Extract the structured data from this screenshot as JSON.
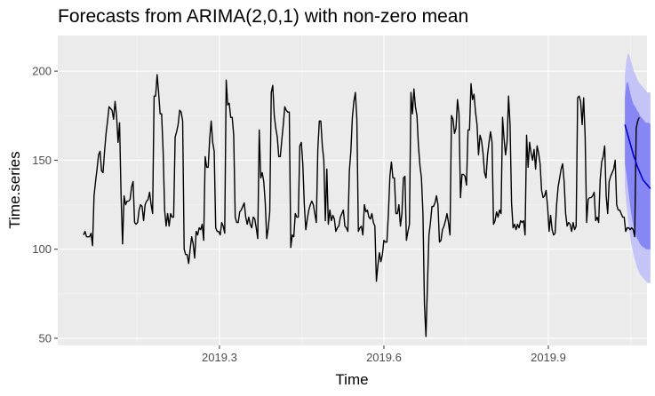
{
  "chart_data": {
    "type": "line",
    "title": "Forecasts from ARIMA(2,0,1) with non-zero mean",
    "xlabel": "Time",
    "ylabel": "Time.series",
    "xlim": [
      2019.005,
      2020.08
    ],
    "ylim": [
      46,
      220
    ],
    "x_ticks": [
      2019.3,
      2019.6,
      2019.9
    ],
    "x_tick_labels": [
      "2019.3",
      "2019.6",
      "2019.9"
    ],
    "y_ticks": [
      50,
      100,
      150,
      200
    ],
    "y_tick_labels": [
      "50",
      "100",
      "150",
      "200"
    ],
    "grid": true,
    "legend": "none",
    "colors": {
      "panel": "#ebebeb",
      "grid_major": "#ffffff",
      "grid_minor": "#f5f5f5",
      "history_line": "#000000",
      "forecast_line": "#0000cc",
      "band_80": "#8686f5",
      "band_95": "#c4c4f7"
    },
    "series": [
      {
        "name": "",
        "role": "history",
        "x_start": 2019.052,
        "x_step": 0.00274,
        "values": [
          108,
          110,
          107,
          107,
          107,
          109,
          102,
          130,
          138,
          145,
          153,
          155,
          144,
          143,
          155,
          165,
          172,
          180,
          179,
          178,
          173,
          183,
          175,
          160,
          171,
          130,
          103,
          130,
          125,
          127,
          127,
          128,
          135,
          138,
          115,
          114,
          115,
          122,
          125,
          124,
          116,
          125,
          127,
          128,
          132,
          125,
          120,
          186,
          186,
          198,
          188,
          176,
          176,
          155,
          122,
          113,
          120,
          113,
          120,
          118,
          118,
          163,
          166,
          170,
          178,
          177,
          172,
          100,
          97,
          97,
          92,
          100,
          107,
          103,
          95,
          110,
          108,
          112,
          111,
          114,
          105,
          152,
          146,
          146,
          162,
          172,
          160,
          155,
          112,
          110,
          110,
          108,
          115,
          113,
          109,
          195,
          181,
          182,
          174,
          174,
          164,
          118,
          115,
          115,
          121,
          122,
          124,
          126,
          118,
          114,
          118,
          114,
          112,
          118,
          117,
          112,
          106,
          167,
          140,
          143,
          138,
          126,
          106,
          112,
          121,
          188,
          192,
          175,
          168,
          163,
          152,
          152,
          161,
          170,
          180,
          178,
          177,
          177,
          101,
          108,
          107,
          120,
          118,
          118,
          158,
          160,
          148,
          125,
          111,
          117,
          122,
          125,
          127,
          125,
          120,
          115,
          156,
          172,
          172,
          158,
          150,
          116,
          145,
          114,
          122,
          116,
          119,
          117,
          110,
          112,
          113,
          118,
          120,
          122,
          113,
          112,
          110,
          144,
          155,
          174,
          183,
          188,
          173,
          110,
          112,
          113,
          108,
          125,
          121,
          122,
          118,
          117,
          120,
          115,
          113,
          82,
          91,
          98,
          93,
          97,
          105,
          104,
          104,
          120,
          141,
          149,
          140,
          140,
          120,
          120,
          125,
          113,
          120,
          140,
          141,
          105,
          110,
          114,
          188,
          176,
          190,
          180,
          175,
          158,
          147,
          140,
          120,
          69,
          51,
          80,
          108,
          115,
          124,
          124,
          126,
          130,
          125,
          104,
          105,
          111,
          113,
          116,
          120,
          115,
          108,
          175,
          173,
          165,
          168,
          184,
          176,
          129,
          142,
          142,
          141,
          136,
          167,
          167,
          193,
          184,
          187,
          177,
          170,
          153,
          164,
          161,
          154,
          143,
          140,
          153,
          160,
          166,
          160,
          114,
          116,
          121,
          118,
          122,
          120,
          174,
          162,
          153,
          160,
          186,
          170,
          126,
          112,
          114,
          111,
          114,
          112,
          116,
          115,
          116,
          108,
          164,
          146,
          160,
          154,
          150,
          156,
          145,
          158,
          154,
          148,
          133,
          129,
          130,
          133,
          124,
          110,
          119,
          111,
          108,
          109,
          125,
          135,
          140,
          145,
          148,
          138,
          120,
          113,
          115,
          114,
          110,
          115,
          111,
          113,
          185,
          186,
          183,
          170,
          185,
          163,
          115,
          128,
          129,
          129,
          130,
          132,
          116,
          118,
          115,
          139,
          149,
          152,
          158,
          130,
          120,
          138,
          141,
          143,
          145,
          150,
          125,
          122,
          122,
          120,
          118,
          118,
          110,
          112,
          112,
          111,
          112,
          111,
          107,
          168,
          172,
          174
        ]
      },
      {
        "name": "",
        "role": "forecast",
        "x_start": 2020.0397,
        "x_step": 0.00274,
        "values": [
          170,
          167,
          164,
          161,
          158,
          155,
          152,
          150,
          147,
          145,
          143,
          141,
          139,
          138,
          137,
          136,
          135,
          134
        ]
      }
    ],
    "prediction_intervals": {
      "x_start": 2020.0397,
      "x_step": 0.00274,
      "lo80": [
        148,
        142,
        135,
        128,
        121,
        116,
        112,
        109,
        106,
        105,
        103,
        102,
        101,
        101,
        100,
        100,
        100,
        100
      ],
      "hi80": [
        185,
        193,
        194,
        190,
        186,
        183,
        181,
        180,
        178,
        177,
        175,
        174,
        173,
        172,
        171,
        171,
        171,
        170
      ],
      "lo95": [
        135,
        125,
        117,
        110,
        104,
        100,
        96,
        93,
        90,
        88,
        86,
        85,
        84,
        83,
        82,
        81,
        81,
        81
      ],
      "hi95": [
        198,
        206,
        210,
        209,
        206,
        203,
        200,
        198,
        196,
        194,
        193,
        192,
        191,
        190,
        189,
        188,
        188,
        188
      ]
    }
  }
}
